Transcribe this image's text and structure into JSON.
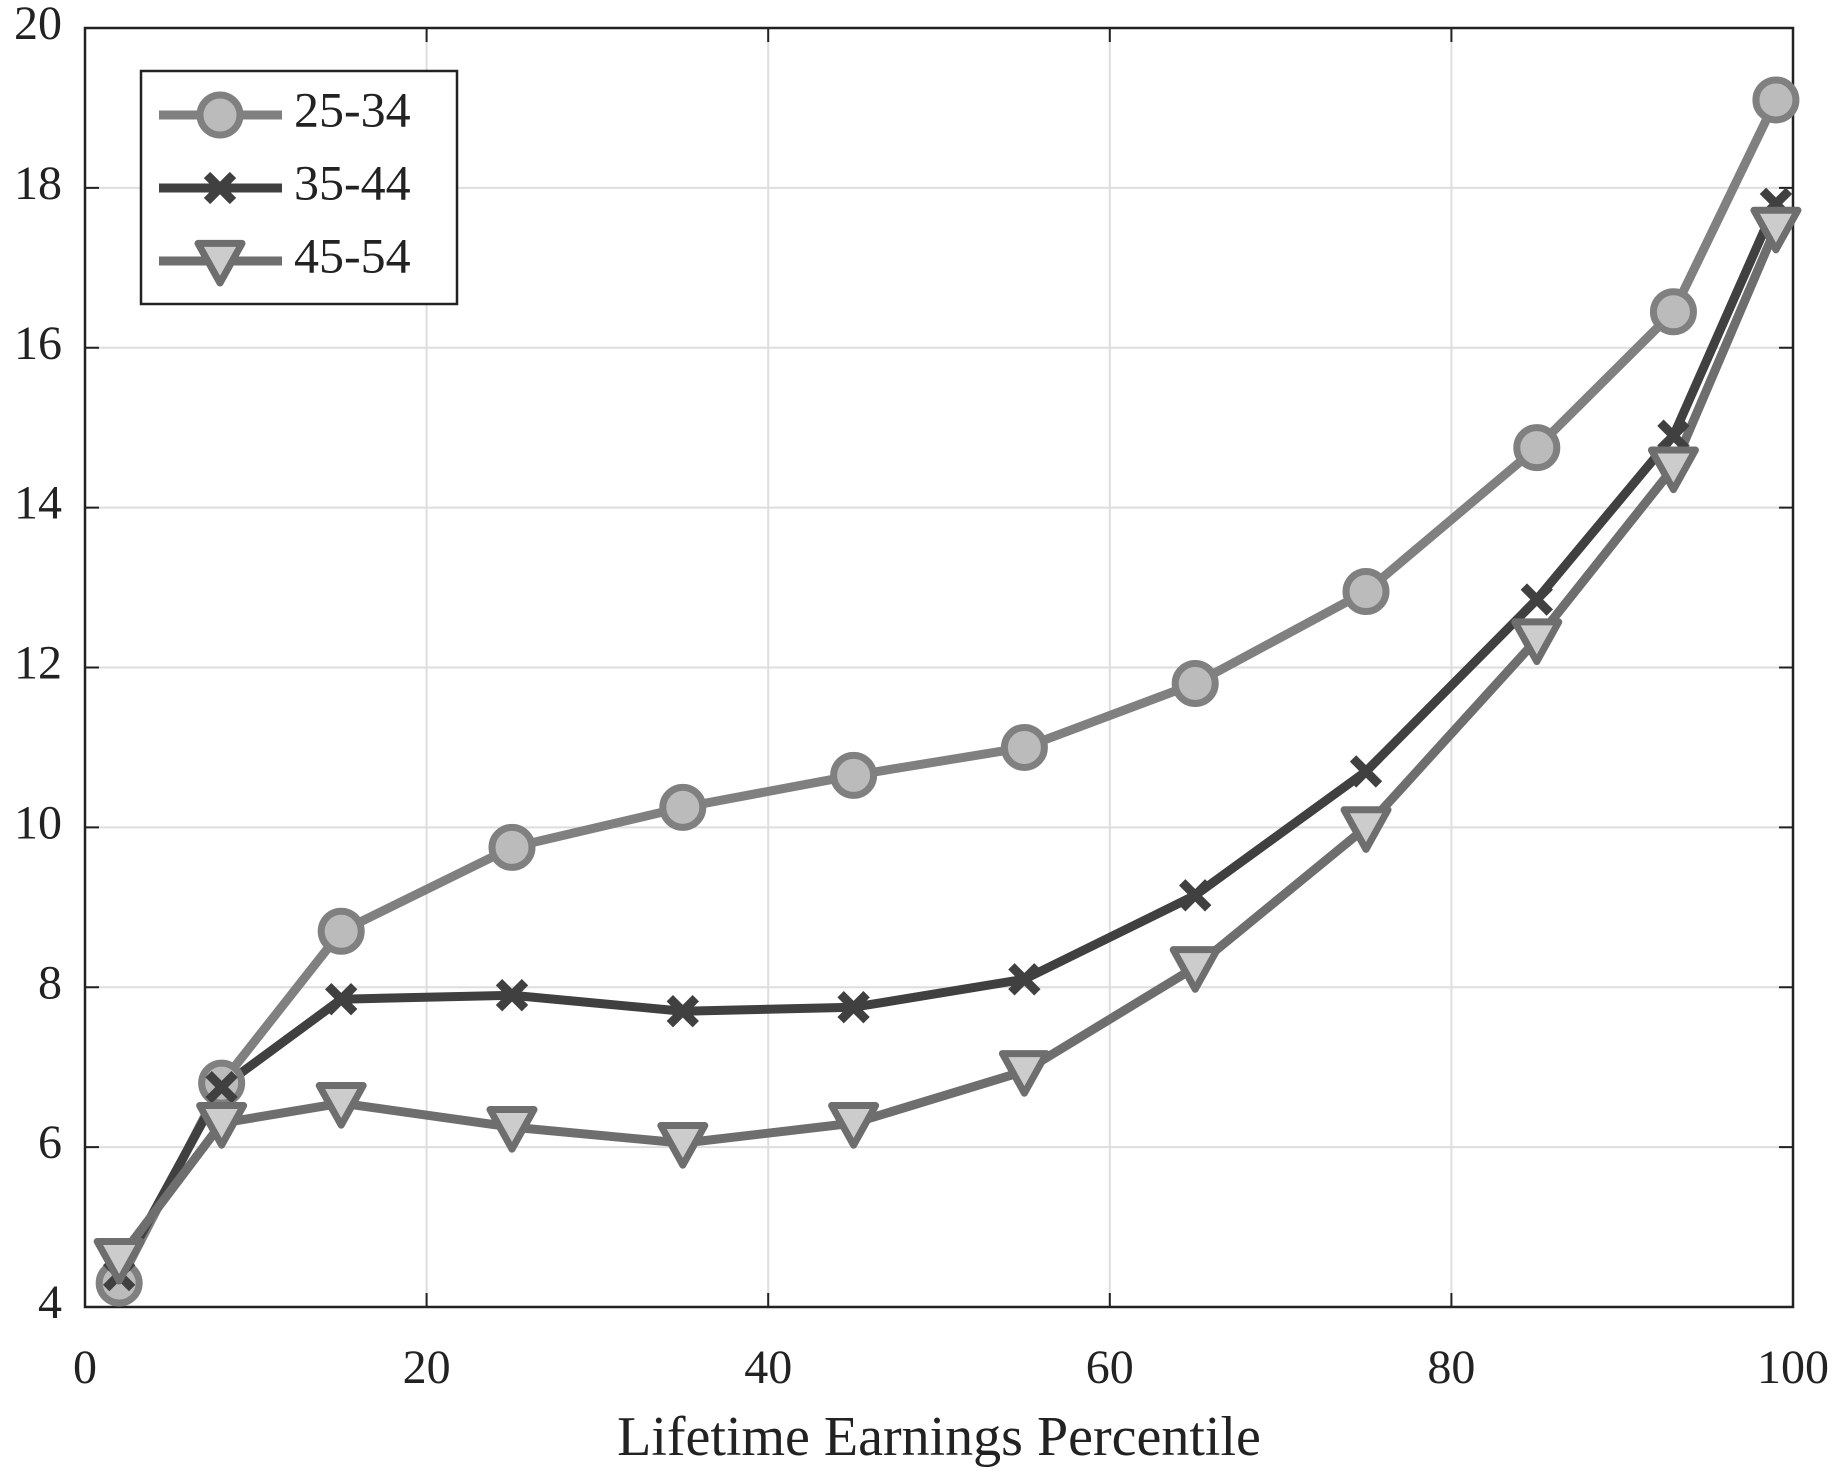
{
  "chart_data": {
    "type": "line",
    "xlabel": "Lifetime Earnings Percentile",
    "x": [
      2,
      8,
      15,
      25,
      35,
      45,
      55,
      65,
      75,
      85,
      93,
      99
    ],
    "series": [
      {
        "name": "25-34",
        "color": "#808080",
        "marker": "circle",
        "marker_fill": "#bbbbbb",
        "values": [
          4.3,
          6.8,
          8.7,
          9.75,
          10.25,
          10.65,
          11.0,
          11.8,
          12.95,
          14.75,
          16.45,
          19.1
        ]
      },
      {
        "name": "35-44",
        "color": "#404040",
        "marker": "x",
        "marker_fill": "#404040",
        "values": [
          4.4,
          6.75,
          7.85,
          7.9,
          7.7,
          7.75,
          8.1,
          9.15,
          10.7,
          12.85,
          14.9,
          17.8
        ]
      },
      {
        "name": "45-54",
        "color": "#6e6e6e",
        "marker": "triangle-down",
        "marker_fill": "#cccccc",
        "values": [
          4.6,
          6.3,
          6.55,
          6.25,
          6.05,
          6.3,
          6.95,
          8.25,
          10.0,
          12.35,
          14.5,
          17.5
        ]
      }
    ],
    "xlim": [
      0,
      100
    ],
    "xticks": [
      0,
      20,
      40,
      60,
      80,
      100
    ],
    "ylim": [
      4,
      20
    ],
    "yticks": [
      4,
      6,
      8,
      10,
      12,
      14,
      16,
      18,
      20
    ],
    "grid": true,
    "legend": "upper-left"
  }
}
